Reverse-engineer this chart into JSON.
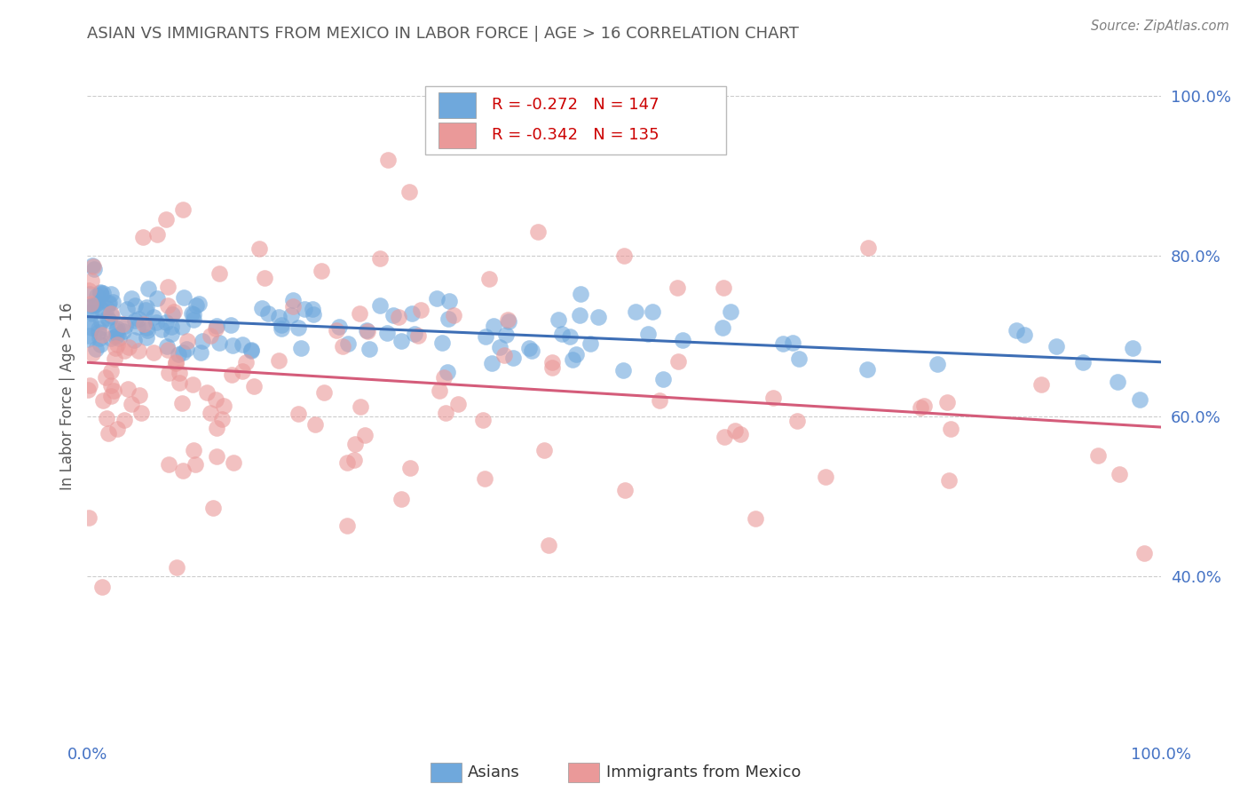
{
  "title": "ASIAN VS IMMIGRANTS FROM MEXICO IN LABOR FORCE | AGE > 16 CORRELATION CHART",
  "source": "Source: ZipAtlas.com",
  "ylabel": "In Labor Force | Age > 16",
  "xlim": [
    0.0,
    1.0
  ],
  "ylim": [
    0.2,
    1.05
  ],
  "x_tick_labels": [
    "0.0%",
    "100.0%"
  ],
  "y_tick_labels": [
    "40.0%",
    "60.0%",
    "80.0%",
    "100.0%"
  ],
  "y_tick_positions": [
    0.4,
    0.6,
    0.8,
    1.0
  ],
  "legend_labels": [
    "Asians",
    "Immigrants from Mexico"
  ],
  "R_asian": -0.272,
  "N_asian": 147,
  "R_mexico": -0.342,
  "N_mexico": 135,
  "blue_color": "#6fa8dc",
  "pink_color": "#ea9999",
  "blue_line_color": "#3d6eb5",
  "pink_line_color": "#d45c7a",
  "title_color": "#595959",
  "source_color": "#808080",
  "axis_label_color": "#4472c4",
  "tick_label_color": "#4472c4",
  "legend_R_color": "#cc0000",
  "legend_N_color": "#4472c4",
  "background_color": "#ffffff",
  "grid_color": "#cccccc"
}
